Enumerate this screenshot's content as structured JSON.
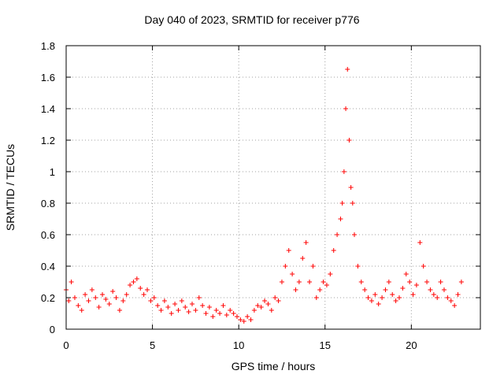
{
  "chart_data": {
    "type": "scatter",
    "title": "Day 040 of 2023, SRMTID for receiver p776",
    "xlabel": "GPS time / hours",
    "ylabel": "SRMTID / TECUs",
    "xlim": [
      0,
      24
    ],
    "ylim": [
      0,
      1.8
    ],
    "x_ticks": [
      "0",
      "5",
      "10",
      "15",
      "20"
    ],
    "y_ticks": [
      "0",
      "0.2",
      "0.4",
      "0.6",
      "0.8",
      "1",
      "1.2",
      "1.4",
      "1.6",
      "1.8"
    ],
    "grid": true,
    "marker": "plus",
    "color": "#ff0000",
    "series": [
      {
        "name": "SRMTID",
        "x": [
          0.0,
          0.15,
          0.3,
          0.5,
          0.7,
          0.9,
          1.1,
          1.3,
          1.5,
          1.7,
          1.9,
          2.1,
          2.3,
          2.5,
          2.7,
          2.9,
          3.1,
          3.3,
          3.5,
          3.7,
          3.9,
          4.1,
          4.3,
          4.5,
          4.7,
          4.9,
          5.1,
          5.3,
          5.5,
          5.7,
          5.9,
          6.1,
          6.3,
          6.5,
          6.7,
          6.9,
          7.1,
          7.3,
          7.5,
          7.7,
          7.9,
          8.1,
          8.3,
          8.5,
          8.7,
          8.9,
          9.1,
          9.3,
          9.5,
          9.7,
          9.9,
          10.1,
          10.3,
          10.5,
          10.7,
          10.9,
          11.1,
          11.3,
          11.5,
          11.7,
          11.9,
          12.1,
          12.3,
          12.5,
          12.7,
          12.9,
          13.1,
          13.3,
          13.5,
          13.7,
          13.9,
          14.1,
          14.3,
          14.5,
          14.7,
          14.9,
          15.1,
          15.3,
          15.5,
          15.7,
          15.9,
          16.0,
          16.1,
          16.2,
          16.3,
          16.4,
          16.5,
          16.6,
          16.7,
          16.9,
          17.1,
          17.3,
          17.5,
          17.7,
          17.9,
          18.1,
          18.3,
          18.5,
          18.7,
          18.9,
          19.1,
          19.3,
          19.5,
          19.7,
          19.9,
          20.1,
          20.3,
          20.5,
          20.7,
          20.9,
          21.1,
          21.3,
          21.5,
          21.7,
          21.9,
          22.1,
          22.3,
          22.5,
          22.7,
          22.9
        ],
        "y": [
          0.25,
          0.18,
          0.3,
          0.2,
          0.15,
          0.12,
          0.22,
          0.18,
          0.25,
          0.2,
          0.14,
          0.22,
          0.19,
          0.16,
          0.24,
          0.2,
          0.12,
          0.18,
          0.22,
          0.28,
          0.3,
          0.32,
          0.26,
          0.22,
          0.25,
          0.18,
          0.2,
          0.15,
          0.12,
          0.18,
          0.14,
          0.1,
          0.16,
          0.12,
          0.18,
          0.14,
          0.11,
          0.16,
          0.12,
          0.2,
          0.15,
          0.1,
          0.14,
          0.08,
          0.12,
          0.1,
          0.15,
          0.09,
          0.12,
          0.1,
          0.08,
          0.06,
          0.05,
          0.08,
          0.06,
          0.12,
          0.15,
          0.14,
          0.18,
          0.16,
          0.12,
          0.2,
          0.18,
          0.3,
          0.4,
          0.5,
          0.35,
          0.25,
          0.3,
          0.45,
          0.55,
          0.3,
          0.4,
          0.2,
          0.25,
          0.3,
          0.28,
          0.35,
          0.5,
          0.6,
          0.7,
          0.8,
          1.0,
          1.4,
          1.65,
          1.2,
          0.9,
          0.8,
          0.6,
          0.4,
          0.3,
          0.25,
          0.2,
          0.18,
          0.22,
          0.16,
          0.2,
          0.25,
          0.3,
          0.22,
          0.18,
          0.2,
          0.26,
          0.35,
          0.3,
          0.22,
          0.28,
          0.55,
          0.4,
          0.3,
          0.25,
          0.22,
          0.2,
          0.3,
          0.25,
          0.2,
          0.18,
          0.15,
          0.22,
          0.3
        ]
      }
    ]
  }
}
